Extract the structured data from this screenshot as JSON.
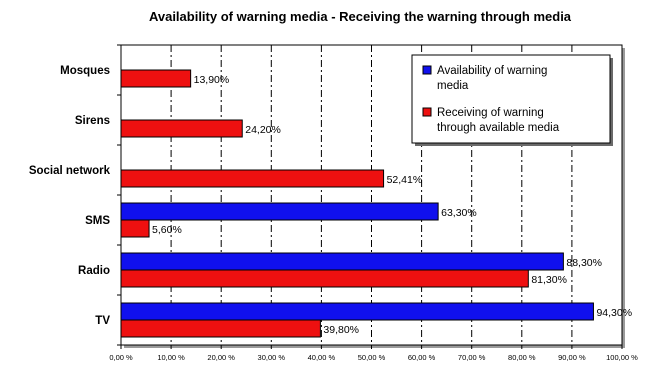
{
  "chart_data": {
    "type": "bar",
    "orientation": "horizontal",
    "title": "Availability of warning media - Receiving the warning through media",
    "categories": [
      "Mosques",
      "Sirens",
      "Social network",
      "SMS",
      "Radio",
      "TV"
    ],
    "series": [
      {
        "name": "Availability of warning media",
        "color": "#1010ee",
        "values": [
          null,
          null,
          null,
          63.3,
          88.3,
          94.3
        ],
        "labels": [
          "",
          "",
          "",
          "63,30%",
          "88,30%",
          "94,30%"
        ]
      },
      {
        "name": "Receiving of warning through available media",
        "color": "#ee1010",
        "values": [
          13.9,
          24.2,
          52.41,
          5.6,
          81.3,
          39.8
        ],
        "labels": [
          "13,90%",
          "24,20%",
          "52,41%",
          "5,60%",
          "81,30%",
          "39,80%"
        ]
      }
    ],
    "xlim": [
      0,
      100
    ],
    "xticks": [
      "0,00 %",
      "10,00 %",
      "20,00 %",
      "30,00 %",
      "40,00 %",
      "50,00 %",
      "60,00 %",
      "70,00 %",
      "80,00 %",
      "90,00 %",
      "100,00 %"
    ],
    "grid": "vertical dash-dot",
    "legend": {
      "placement": "top-right",
      "lines": [
        [
          "Availability of warning",
          "media"
        ],
        [
          "Receiving of warning",
          "through available media"
        ]
      ]
    }
  }
}
